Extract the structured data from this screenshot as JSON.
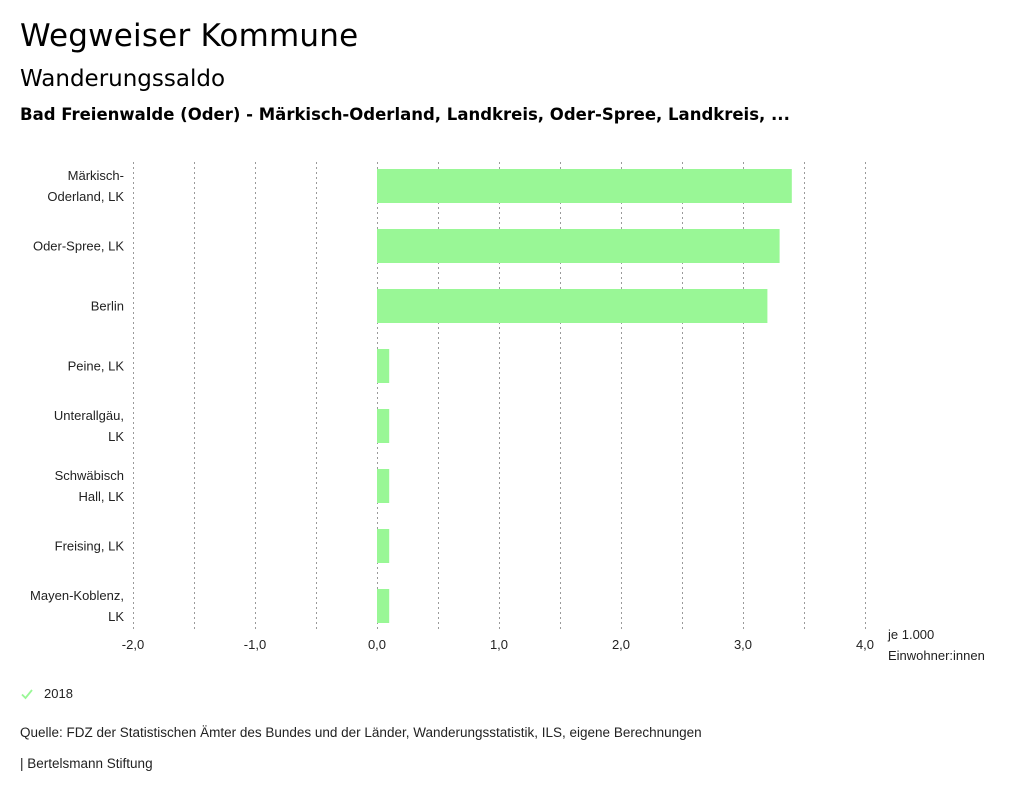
{
  "header": {
    "title": "Wegweiser Kommune",
    "subtitle": "Wanderungssaldo",
    "region": "Bad Freienwalde (Oder) - Märkisch-Oderland, Landkreis, Oder-Spree, Landkreis, ..."
  },
  "legend": {
    "label": "2018",
    "color": "#99f796"
  },
  "footer": {
    "source": "Quelle: FDZ der Statistischen Ämter des Bundes und der Länder, Wanderungsstatistik, ILS, eigene Berechnungen",
    "publisher": "| Bertelsmann Stiftung"
  },
  "axis": {
    "unit_line1": "je 1.000",
    "unit_line2": "Einwohner:innen"
  },
  "chart_data": {
    "type": "bar",
    "orientation": "horizontal",
    "title": "Wanderungssaldo",
    "xlabel": "je 1.000 Einwohner:innen",
    "ylabel": "",
    "xlim": [
      -2.0,
      4.0
    ],
    "ticks": [
      -2.0,
      -1.0,
      0.0,
      1.0,
      2.0,
      3.0,
      4.0
    ],
    "tick_labels": [
      "-2,0",
      "-1,0",
      "0,0",
      "1,0",
      "2,0",
      "3,0",
      "4,0"
    ],
    "grid": true,
    "categories": [
      [
        "Märkisch-",
        "Oderland, LK"
      ],
      [
        "Oder-Spree, LK"
      ],
      [
        "Berlin"
      ],
      [
        "Peine, LK"
      ],
      [
        "Unterallgäu,",
        "LK"
      ],
      [
        "Schwäbisch",
        "Hall, LK"
      ],
      [
        "Freising, LK"
      ],
      [
        "Mayen-Koblenz,",
        "LK"
      ]
    ],
    "series": [
      {
        "name": "2018",
        "color": "#99f796",
        "values": [
          3.4,
          3.3,
          3.2,
          0.1,
          0.1,
          0.1,
          0.1,
          0.1
        ]
      }
    ]
  }
}
